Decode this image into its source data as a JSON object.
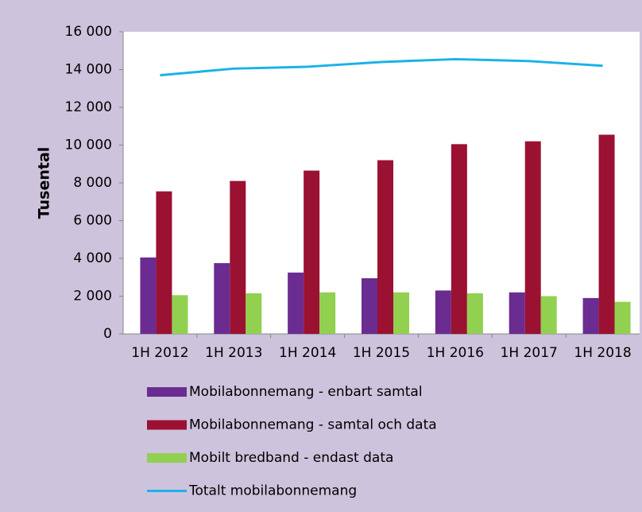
{
  "chart_data": {
    "type": "bar",
    "y_label": "Tusental",
    "categories": [
      "1H 2012",
      "1H 2013",
      "1H 2014",
      "1H 2015",
      "1H 2016",
      "1H 2017",
      "1H 2018"
    ],
    "series": [
      {
        "name": "Mobilabonnemang - enbart samtal",
        "color": "#6b2c91",
        "values": [
          4050,
          3750,
          3250,
          2950,
          2300,
          2200,
          1900
        ]
      },
      {
        "name": "Mobilabonnemang - samtal och data",
        "color": "#9b1131",
        "values": [
          7550,
          8100,
          8650,
          9200,
          10050,
          10200,
          10550
        ]
      },
      {
        "name": "Mobilt bredband - endast data",
        "color": "#92d050",
        "values": [
          2050,
          2150,
          2200,
          2200,
          2150,
          2000,
          1700
        ]
      },
      {
        "name": "Totalt mobilabonnemang",
        "color": "#1ab2e8",
        "type": "line",
        "values": [
          13700,
          14050,
          14150,
          14400,
          14550,
          14450,
          14200
        ]
      }
    ],
    "ylim": [
      0,
      16000
    ],
    "yticks": [
      0,
      {
        "value": 2000,
        "label": "2 000"
      },
      {
        "value": 4000,
        "label": "4 000"
      },
      {
        "value": 6000,
        "label": "6 000"
      },
      {
        "value": 8000,
        "label": "8 000"
      },
      {
        "value": 10000,
        "label": "10 000"
      },
      {
        "value": 12000,
        "label": "12 000"
      },
      {
        "value": 14000,
        "label": "14 000"
      },
      {
        "value": 16000,
        "label": "16 000"
      }
    ],
    "grid": false
  }
}
